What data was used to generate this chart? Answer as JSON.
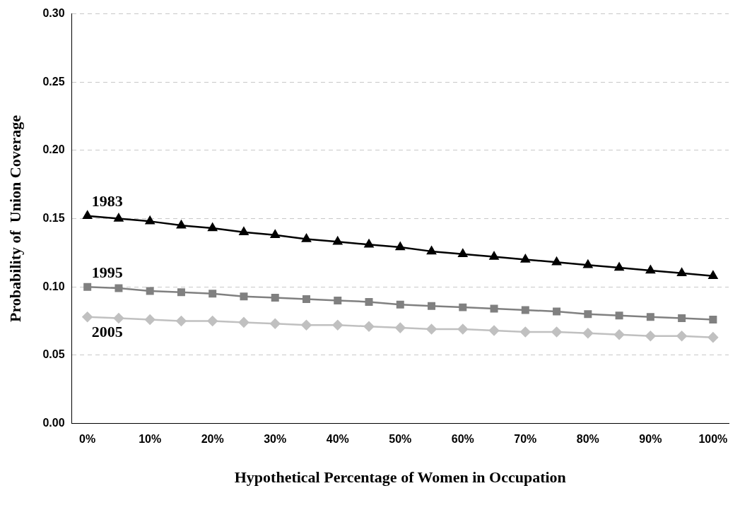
{
  "chart_data": {
    "type": "line",
    "xlabel": "Hypothetical Percentage of Women in Occupation",
    "ylabel": "Probability of  Union Coverage",
    "categories": [
      "0%",
      null,
      "10%",
      null,
      "20%",
      null,
      "30%",
      null,
      "40%",
      null,
      "50%",
      null,
      "60%",
      null,
      "70%",
      null,
      "80%",
      null,
      "90%",
      null,
      "100%"
    ],
    "series": [
      {
        "name": "1983",
        "color": "#000000",
        "marker": "triangle",
        "values": [
          0.152,
          0.15,
          0.148,
          0.145,
          0.143,
          0.14,
          0.138,
          0.135,
          0.133,
          0.131,
          0.129,
          0.126,
          0.124,
          0.122,
          0.12,
          0.118,
          0.116,
          0.114,
          0.112,
          0.11,
          0.108
        ]
      },
      {
        "name": "1995",
        "color": "#808080",
        "marker": "square",
        "values": [
          0.1,
          0.099,
          0.097,
          0.096,
          0.095,
          0.093,
          0.092,
          0.091,
          0.09,
          0.089,
          0.087,
          0.086,
          0.085,
          0.084,
          0.083,
          0.082,
          0.08,
          0.079,
          0.078,
          0.077,
          0.076
        ]
      },
      {
        "name": "2005",
        "color": "#c0c0c0",
        "marker": "diamond",
        "values": [
          0.078,
          0.077,
          0.076,
          0.075,
          0.075,
          0.074,
          0.073,
          0.072,
          0.072,
          0.071,
          0.07,
          0.069,
          0.069,
          0.068,
          0.067,
          0.067,
          0.066,
          0.065,
          0.064,
          0.064,
          0.063
        ]
      }
    ],
    "ylim": [
      0,
      0.3
    ],
    "yticks": [
      {
        "value": 0,
        "label": "0.00"
      },
      {
        "value": 0.05,
        "label": "0.05"
      },
      {
        "value": 0.1,
        "label": "0.10"
      },
      {
        "value": 0.15,
        "label": "0.15"
      },
      {
        "value": 0.2,
        "label": "0.20"
      },
      {
        "value": 0.25,
        "label": "0.25"
      },
      {
        "value": 0.3,
        "label": "0.30"
      }
    ],
    "grid": "y",
    "legend": false,
    "line_style": "solid"
  }
}
